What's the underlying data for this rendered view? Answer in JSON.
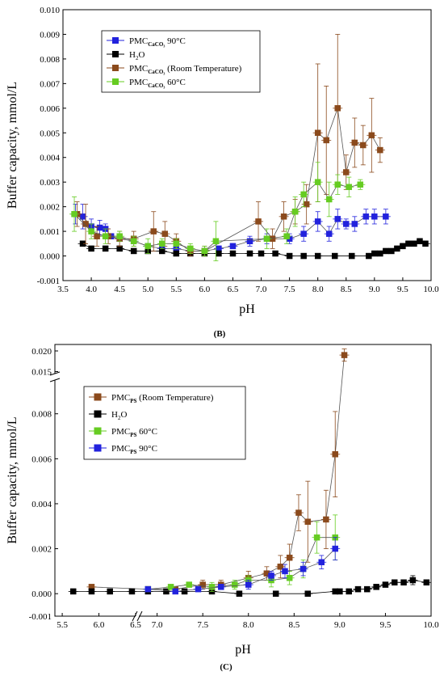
{
  "chart_data": [
    {
      "type": "scatter",
      "panel_label": "(B)",
      "xlabel": "pH",
      "ylabel": "Buffer capacity, mmol/L",
      "xlim": [
        3.5,
        10.0
      ],
      "ylim": [
        -0.001,
        0.01
      ],
      "xticks": [
        "3.5",
        "4.0",
        "4.5",
        "5.0",
        "5.5",
        "6.0",
        "6.5",
        "7.0",
        "7.5",
        "8.0",
        "8.5",
        "9.0",
        "9.5",
        "10.0"
      ],
      "yticks": [
        "-0.001",
        "0.000",
        "0.001",
        "0.002",
        "0.003",
        "0.004",
        "0.005",
        "0.006",
        "0.007",
        "0.008",
        "0.009",
        "0.010"
      ],
      "legend_position": "top-left",
      "series": [
        {
          "legend_html": "PMC<tspan font-size='7' dy='3' font-weight='bold'>CaCO₃</tspan><tspan dy='-3'> 90°C</tspan>",
          "color": "#2222dd",
          "points": [
            [
              3.72,
              0.0017
            ],
            [
              3.85,
              0.0016
            ],
            [
              4.0,
              0.0012
            ],
            [
              4.15,
              0.00115
            ],
            [
              4.25,
              0.0011
            ],
            [
              4.35,
              0.0008
            ],
            [
              4.5,
              0.0007
            ],
            [
              4.75,
              0.0006
            ],
            [
              5.0,
              0.0004
            ],
            [
              5.25,
              0.0003
            ],
            [
              5.5,
              0.0003
            ],
            [
              5.75,
              0.0002
            ],
            [
              6.0,
              0.0002
            ],
            [
              6.25,
              0.0003
            ],
            [
              6.5,
              0.0004
            ],
            [
              6.8,
              0.0006
            ],
            [
              7.1,
              0.0007
            ],
            [
              7.5,
              0.0007
            ],
            [
              7.75,
              0.0009
            ],
            [
              8.0,
              0.0014
            ],
            [
              8.2,
              0.0009
            ],
            [
              8.35,
              0.0015
            ],
            [
              8.5,
              0.0013
            ],
            [
              8.65,
              0.0013
            ],
            [
              8.85,
              0.0016
            ],
            [
              9.0,
              0.0016
            ],
            [
              9.2,
              0.0016
            ]
          ],
          "errors": [
            0.0004,
            0.0005,
            0.0003,
            0.0003,
            0.0002,
            0.0001,
            0.0001,
            0.0001,
            0.0001,
            0.0001,
            0.0001,
            0.0001,
            0.0001,
            0.0001,
            0.0001,
            0.0002,
            0.0002,
            0.0002,
            0.0003,
            0.0004,
            0.0003,
            0.0004,
            0.0002,
            0.0003,
            0.0003,
            0.0003,
            0.0003
          ]
        },
        {
          "legend_html": "H<tspan font-size='7' dy='3'>2</tspan><tspan dy='-3'>O</tspan>",
          "color": "#000000",
          "points": [
            [
              3.85,
              0.0005
            ],
            [
              4.0,
              0.0003
            ],
            [
              4.25,
              0.0003
            ],
            [
              4.5,
              0.0003
            ],
            [
              4.75,
              0.0002
            ],
            [
              5.0,
              0.0002
            ],
            [
              5.25,
              0.0002
            ],
            [
              5.5,
              0.0001
            ],
            [
              5.75,
              0.0001
            ],
            [
              6.0,
              0.0001
            ],
            [
              6.25,
              0.0001
            ],
            [
              6.5,
              0.0001
            ],
            [
              6.8,
              0.0001
            ],
            [
              7.0,
              0.0001
            ],
            [
              7.25,
              0.0001
            ],
            [
              7.5,
              0.0
            ],
            [
              7.75,
              0.0
            ],
            [
              8.0,
              0.0
            ],
            [
              8.3,
              0.0
            ],
            [
              8.6,
              0.0
            ],
            [
              8.9,
              0.0
            ],
            [
              9.0,
              0.0001
            ],
            [
              9.1,
              0.0001
            ],
            [
              9.2,
              0.0002
            ],
            [
              9.3,
              0.0002
            ],
            [
              9.4,
              0.0003
            ],
            [
              9.5,
              0.0004
            ],
            [
              9.6,
              0.0005
            ],
            [
              9.7,
              0.0005
            ],
            [
              9.8,
              0.0006
            ],
            [
              9.9,
              0.0005
            ]
          ],
          "errors": [
            0.0001,
            0.0001,
            0.0001,
            0.0001,
            0.0001,
            0.0001,
            0.0001,
            0.0001,
            0.0001,
            0.0001,
            0.0001,
            0.0001,
            0.0001,
            0.0001,
            0.0001,
            0.0001,
            0.0001,
            0.0001,
            0.0001,
            0.0001,
            0.0001,
            0.0001,
            0.0001,
            0.0001,
            0.0001,
            0.0001,
            0.0001,
            0.0001,
            0.0001,
            0.0001,
            0.0001
          ]
        },
        {
          "legend_html": "PMC<tspan font-size='7' dy='3' font-weight='bold'>CaCO₃</tspan><tspan dy='-3'> (Room Temperature)</tspan>",
          "color": "#8b4a1c",
          "points": [
            [
              3.75,
              0.0017
            ],
            [
              3.9,
              0.0013
            ],
            [
              4.1,
              0.0008
            ],
            [
              4.3,
              0.0008
            ],
            [
              4.5,
              0.0007
            ],
            [
              4.75,
              0.0007
            ],
            [
              5.1,
              0.001
            ],
            [
              5.3,
              0.0009
            ],
            [
              5.5,
              0.0006
            ],
            [
              5.75,
              0.0002
            ],
            [
              6.0,
              0.0002
            ],
            [
              6.95,
              0.0014
            ],
            [
              7.2,
              0.0007
            ],
            [
              7.4,
              0.0016
            ],
            [
              7.6,
              0.0018
            ],
            [
              7.8,
              0.0021
            ],
            [
              8.0,
              0.005
            ],
            [
              8.15,
              0.0047
            ],
            [
              8.35,
              0.006
            ],
            [
              8.5,
              0.0034
            ],
            [
              8.65,
              0.0046
            ],
            [
              8.8,
              0.0045
            ],
            [
              8.95,
              0.0049
            ],
            [
              9.1,
              0.0043
            ]
          ],
          "errors": [
            0.0005,
            0.0008,
            0.0004,
            0.0003,
            0.0003,
            0.0003,
            0.0008,
            0.0005,
            0.0003,
            0.0002,
            0.0002,
            0.0008,
            0.0004,
            0.0006,
            0.0005,
            0.0008,
            0.0028,
            0.0022,
            0.003,
            0.0007,
            0.001,
            0.0008,
            0.0015,
            0.0005
          ]
        },
        {
          "legend_html": "PMC<tspan font-size='7' dy='3' font-weight='bold'>CaCO₃</tspan><tspan dy='-3'> 60°C</tspan>",
          "color": "#66cc22",
          "points": [
            [
              3.7,
              0.0017
            ],
            [
              4.0,
              0.001
            ],
            [
              4.25,
              0.0008
            ],
            [
              4.5,
              0.0008
            ],
            [
              4.75,
              0.0006
            ],
            [
              5.0,
              0.0004
            ],
            [
              5.25,
              0.0005
            ],
            [
              5.5,
              0.0005
            ],
            [
              5.75,
              0.0003
            ],
            [
              6.0,
              0.0002
            ],
            [
              6.2,
              0.0006
            ],
            [
              7.1,
              0.0007
            ],
            [
              7.45,
              0.0008
            ],
            [
              7.6,
              0.0018
            ],
            [
              7.75,
              0.0025
            ],
            [
              8.0,
              0.003
            ],
            [
              8.2,
              0.0023
            ],
            [
              8.35,
              0.0029
            ],
            [
              8.55,
              0.0028
            ],
            [
              8.75,
              0.0029
            ]
          ],
          "errors": [
            0.0007,
            0.0003,
            0.0003,
            0.0002,
            0.0002,
            0.0003,
            0.0002,
            0.0002,
            0.0002,
            0.0002,
            0.0008,
            0.0004,
            0.0003,
            0.0006,
            0.0005,
            0.0008,
            0.0007,
            0.0004,
            0.0004,
            0.0002
          ]
        }
      ]
    },
    {
      "type": "scatter",
      "panel_label": "(C)",
      "xlabel": "pH",
      "ylabel": "Buffer capacity, mmol/L",
      "xlim": [
        5.4,
        10.0
      ],
      "ylim": [
        -0.001,
        0.02
      ],
      "axis_break_y": [
        0.0095,
        0.0145
      ],
      "axis_break_x": [
        6.5,
        6.8
      ],
      "xticks": [
        "5.5",
        "6.0",
        "6.5",
        "7.0",
        "7.5",
        "8.0",
        "8.5",
        "9.0",
        "9.5",
        "10.0"
      ],
      "yticks": [
        "-0.001",
        "0.000",
        "0.002",
        "0.004",
        "0.006",
        "0.008",
        "0.015",
        "0.020"
      ],
      "legend_position": "top-left",
      "series": [
        {
          "legend_html": "PMC<tspan font-size='7' dy='3' font-weight='bold'>PS</tspan><tspan dy='-3'> (Room Temperature)</tspan>",
          "color": "#8b4a1c",
          "points": [
            [
              5.9,
              0.0003
            ],
            [
              6.9,
              0.0002
            ],
            [
              7.2,
              0.0002
            ],
            [
              7.5,
              0.0004
            ],
            [
              7.7,
              0.0004
            ],
            [
              8.0,
              0.0007
            ],
            [
              8.2,
              0.0009
            ],
            [
              8.35,
              0.0012
            ],
            [
              8.45,
              0.0016
            ],
            [
              8.55,
              0.0036
            ],
            [
              8.65,
              0.0032
            ],
            [
              8.85,
              0.0033
            ],
            [
              8.95,
              0.0062
            ],
            [
              9.05,
              0.019
            ]
          ],
          "errors": [
            0.0001,
            0.0001,
            0.0001,
            0.0002,
            0.0002,
            0.0003,
            0.0003,
            0.0005,
            0.0006,
            0.0008,
            0.0018,
            0.0013,
            0.0019,
            0.0015
          ]
        },
        {
          "legend_html": "H<tspan font-size='7' dy='3'>2</tspan><tspan dy='-3'>O</tspan>",
          "color": "#000000",
          "points": [
            [
              5.65,
              0.0001
            ],
            [
              5.9,
              0.0001
            ],
            [
              6.15,
              0.0001
            ],
            [
              6.45,
              0.0001
            ],
            [
              6.9,
              0.0001
            ],
            [
              7.1,
              0.0001
            ],
            [
              7.3,
              0.0001
            ],
            [
              7.6,
              0.0001
            ],
            [
              7.9,
              0.0
            ],
            [
              8.3,
              0.0
            ],
            [
              8.65,
              0.0
            ],
            [
              8.95,
              0.0001
            ],
            [
              9.0,
              0.0001
            ],
            [
              9.1,
              0.0001
            ],
            [
              9.2,
              0.0002
            ],
            [
              9.3,
              0.0002
            ],
            [
              9.4,
              0.0003
            ],
            [
              9.5,
              0.0004
            ],
            [
              9.6,
              0.0005
            ],
            [
              9.7,
              0.0005
            ],
            [
              9.8,
              0.0006
            ],
            [
              9.95,
              0.0005
            ]
          ],
          "errors": [
            0.0001,
            0.0001,
            0.0001,
            0.0001,
            0.0001,
            0.0001,
            0.0001,
            0.0001,
            0.0001,
            0.0001,
            0.0001,
            0.0001,
            0.0001,
            0.0001,
            0.0001,
            0.0001,
            0.0001,
            0.0001,
            0.0001,
            0.0001,
            0.0002,
            0.0001
          ]
        },
        {
          "legend_html": "PMC<tspan font-size='7' dy='3' font-weight='bold'>PS</tspan><tspan dy='-3'> 60°C</tspan>",
          "color": "#66cc22",
          "points": [
            [
              6.9,
              0.0002
            ],
            [
              7.15,
              0.0003
            ],
            [
              7.35,
              0.0004
            ],
            [
              7.6,
              0.0003
            ],
            [
              7.85,
              0.0004
            ],
            [
              8.0,
              0.0006
            ],
            [
              8.25,
              0.0006
            ],
            [
              8.45,
              0.0007
            ],
            [
              8.6,
              0.0011
            ],
            [
              8.75,
              0.0025
            ],
            [
              8.95,
              0.0025
            ]
          ],
          "errors": [
            0.0001,
            0.0001,
            0.0001,
            0.0002,
            0.0002,
            0.0002,
            0.0003,
            0.0003,
            0.0004,
            0.0007,
            0.001
          ]
        },
        {
          "legend_html": "PMC<tspan font-size='7' dy='3' font-weight='bold'>PS</tspan><tspan dy='-3'> 90°C</tspan>",
          "color": "#2222dd",
          "points": [
            [
              6.9,
              0.0002
            ],
            [
              7.2,
              0.0001
            ],
            [
              7.45,
              0.0002
            ],
            [
              7.7,
              0.0003
            ],
            [
              8.0,
              0.0004
            ],
            [
              8.25,
              0.0008
            ],
            [
              8.4,
              0.001
            ],
            [
              8.6,
              0.0011
            ],
            [
              8.8,
              0.0014
            ],
            [
              8.95,
              0.002
            ]
          ],
          "errors": [
            0.0001,
            0.0001,
            0.0001,
            0.0001,
            0.0002,
            0.0002,
            0.0003,
            0.0003,
            0.0003,
            0.0005
          ]
        }
      ]
    }
  ]
}
